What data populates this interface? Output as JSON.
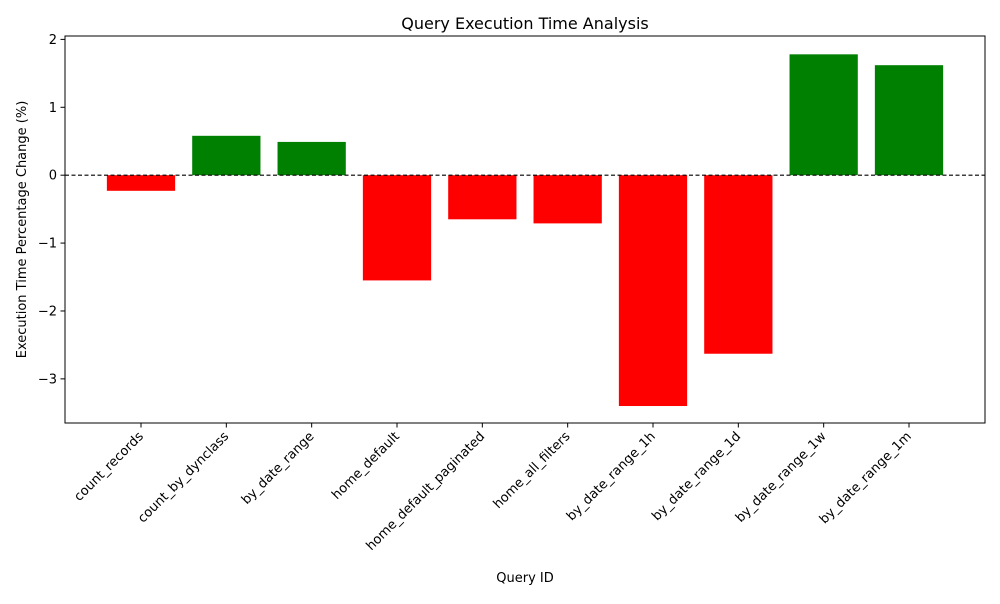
{
  "chart_data": {
    "type": "bar",
    "title": "Query Execution Time Analysis",
    "xlabel": "Query ID",
    "ylabel": "Execution Time Percentage Change (%)",
    "categories": [
      "count_records",
      "count_by_dynclass",
      "by_date_range",
      "home_default",
      "home_default_paginated",
      "home_all_filters",
      "by_date_range_1h",
      "by_date_range_1d",
      "by_date_range_1w",
      "by_date_range_1m"
    ],
    "values": [
      -0.23,
      0.58,
      0.49,
      -1.55,
      -0.65,
      -0.71,
      -3.4,
      -2.63,
      1.78,
      1.62
    ],
    "ylim": [
      -3.65,
      2.05
    ],
    "yticks": [
      2,
      1,
      0,
      -1,
      -2,
      -3
    ],
    "ytick_labels": [
      "2",
      "1",
      "0",
      "−1",
      "−2",
      "−3"
    ],
    "reference_line": 0,
    "grid": false,
    "legend": "none",
    "colors": {
      "positive": "#008000",
      "negative": "#ff0000",
      "axis": "#000000",
      "reference_line": "#000000"
    }
  }
}
